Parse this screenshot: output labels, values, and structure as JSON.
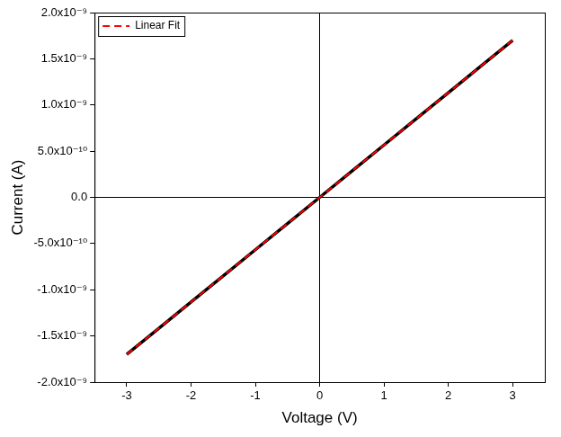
{
  "chart_data": {
    "type": "line",
    "x_label": "Voltage (V)",
    "y_label": "Current (A)",
    "x": [
      -3,
      -2.5,
      -2,
      -1.5,
      -1,
      -0.5,
      0,
      0.5,
      1,
      1.5,
      2,
      2.5,
      3
    ],
    "series": [
      {
        "color": "#000000",
        "line_style": "solid",
        "values": [
          -1.7e-09,
          -1.417e-09,
          -1.133e-09,
          -8.5e-10,
          -5.67e-10,
          -2.83e-10,
          0,
          2.83e-10,
          5.67e-10,
          8.5e-10,
          1.133e-09,
          1.417e-09,
          1.7e-09
        ]
      },
      {
        "name": "Linear Fit",
        "color": "#ff0000",
        "line_style": "dashed",
        "values": [
          -1.7e-09,
          -1.417e-09,
          -1.133e-09,
          -8.5e-10,
          -5.67e-10,
          -2.83e-10,
          0,
          2.83e-10,
          5.67e-10,
          8.5e-10,
          1.133e-09,
          1.417e-09,
          1.7e-09
        ]
      }
    ],
    "xlim": [
      -3.5,
      3.5
    ],
    "xticks": [
      -3,
      -2,
      -1,
      0,
      1,
      2,
      3
    ],
    "ylim": [
      -2e-09,
      2e-09
    ],
    "yticks": [
      {
        "value": -2e-09,
        "label": "-2.0x10⁻⁹"
      },
      {
        "value": -1.5e-09,
        "label": "-1.5x10⁻⁹"
      },
      {
        "value": -1e-09,
        "label": "-1.0x10⁻⁹"
      },
      {
        "value": -5e-10,
        "label": "-5.0x10⁻¹⁰"
      },
      {
        "value": 0,
        "label": "0.0"
      },
      {
        "value": 5e-10,
        "label": "5.0x10⁻¹⁰"
      },
      {
        "value": 1e-09,
        "label": "1.0x10⁻⁹"
      },
      {
        "value": 1.5e-09,
        "label": "1.5x10⁻⁹"
      },
      {
        "value": 2e-09,
        "label": "2.0x10⁻⁹"
      }
    ],
    "legend": "upper left"
  }
}
